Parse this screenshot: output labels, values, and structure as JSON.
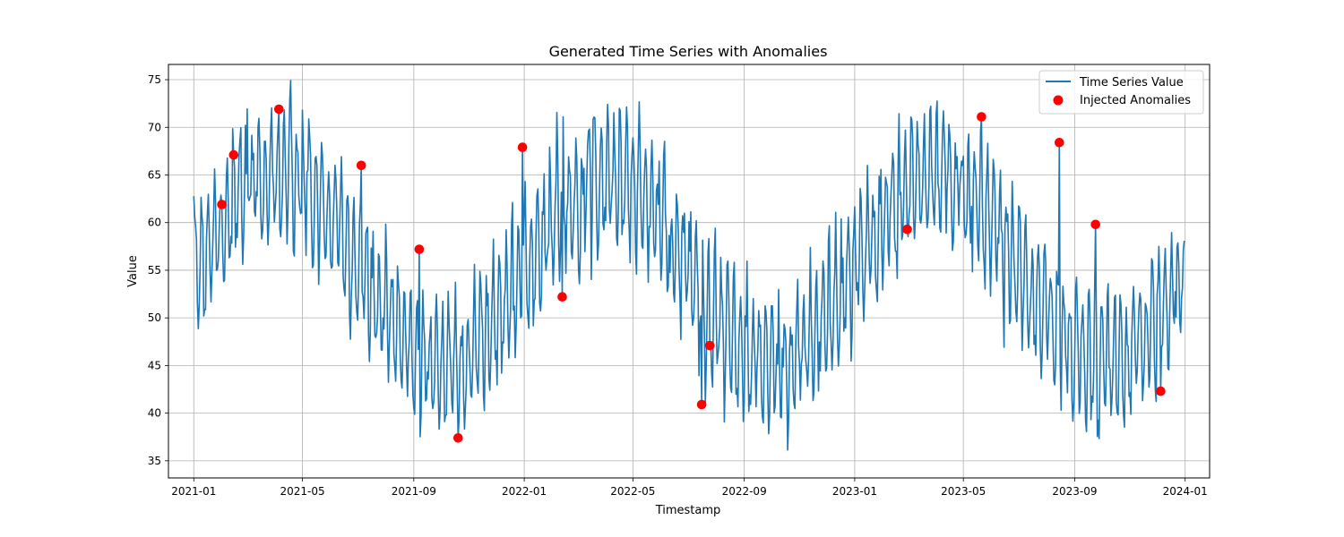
{
  "chart_data": {
    "type": "line",
    "title": "Generated Time Series with Anomalies",
    "xlabel": "Timestamp",
    "ylabel": "Value",
    "xlim": [
      "2020-12-04",
      "2024-01-28"
    ],
    "ylim": [
      33.2,
      76.6
    ],
    "x_ticks": [
      "2021-01-01",
      "2021-05-01",
      "2021-09-01",
      "2022-01-01",
      "2022-05-01",
      "2022-09-01",
      "2023-01-01",
      "2023-05-01",
      "2023-09-01",
      "2024-01-01"
    ],
    "x_tick_labels": [
      "2021-01",
      "2021-05",
      "2021-09",
      "2022-01",
      "2022-05",
      "2022-09",
      "2023-01",
      "2023-05",
      "2023-09",
      "2024-01"
    ],
    "y_ticks": [
      35,
      40,
      45,
      50,
      55,
      60,
      65,
      70,
      75
    ],
    "grid": true,
    "legend": {
      "position": "top-right"
    },
    "colors": {
      "line": "#1f77b4",
      "anomaly": "#ff0000",
      "grid": "#b0b0b0"
    },
    "series": [
      {
        "name": "Time Series Value",
        "type": "line",
        "pattern": "daily values from 2021-01-01 to 2023-12-31 following a yearly sinusoid of mean 55 and amplitude 10 (peak in April) plus a weekly oscillation of amplitude 6 and random noise",
        "x_start": "2021-01-01",
        "x_end": "2023-12-31",
        "baseline": 55,
        "annual_amplitude": 10,
        "weekly_amplitude": 6,
        "noise": 2
      },
      {
        "name": "Injected Anomalies",
        "type": "scatter",
        "points": [
          {
            "x": "2021-02-01",
            "y": 61.9
          },
          {
            "x": "2021-02-14",
            "y": 67.1
          },
          {
            "x": "2021-04-05",
            "y": 71.9
          },
          {
            "x": "2021-07-05",
            "y": 66.0
          },
          {
            "x": "2021-09-07",
            "y": 57.2
          },
          {
            "x": "2021-10-20",
            "y": 37.4
          },
          {
            "x": "2021-12-30",
            "y": 67.9
          },
          {
            "x": "2022-02-12",
            "y": 52.2
          },
          {
            "x": "2022-07-16",
            "y": 40.9
          },
          {
            "x": "2022-07-25",
            "y": 47.1
          },
          {
            "x": "2023-02-28",
            "y": 59.3
          },
          {
            "x": "2023-05-21",
            "y": 71.1
          },
          {
            "x": "2023-08-15",
            "y": 68.4
          },
          {
            "x": "2023-09-24",
            "y": 59.8
          },
          {
            "x": "2023-12-05",
            "y": 42.3
          }
        ]
      }
    ]
  }
}
